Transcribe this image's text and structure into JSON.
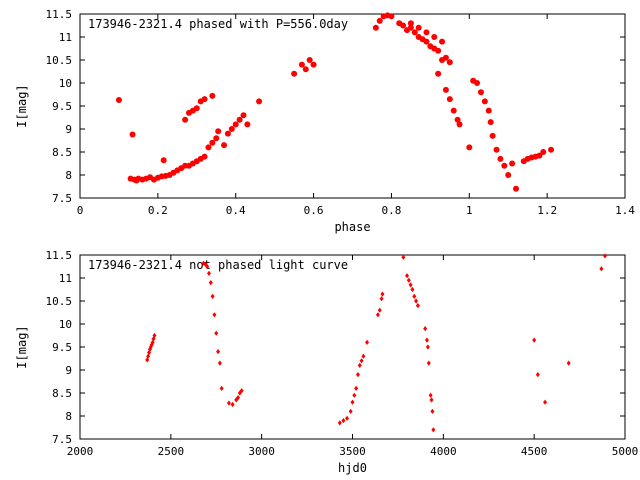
{
  "chart_data": [
    {
      "type": "scatter",
      "title": "173946-2321.4 phased with P=556.0day",
      "xlabel": "phase",
      "ylabel": "I[mag]",
      "xlim": [
        0,
        1.4
      ],
      "ylim": [
        11.5,
        7.5
      ],
      "y_inverted": true,
      "grid": false,
      "legend": "none",
      "marker": "filled-circle",
      "marker_color": "#ff0000",
      "xticks": [
        "0",
        "0.2",
        "0.4",
        "0.6",
        "0.8",
        "1",
        "1.2",
        "1.4"
      ],
      "yticks": [
        "7.5",
        "8",
        "8.5",
        "9",
        "9.5",
        "10",
        "10.5",
        "11",
        "11.5"
      ],
      "series": [
        {
          "points": [
            [
              0.1,
              9.63
            ],
            [
              0.13,
              7.92
            ],
            [
              0.135,
              8.88
            ],
            [
              0.14,
              7.9
            ],
            [
              0.145,
              7.88
            ],
            [
              0.15,
              7.92
            ],
            [
              0.16,
              7.9
            ],
            [
              0.17,
              7.92
            ],
            [
              0.18,
              7.95
            ],
            [
              0.19,
              7.9
            ],
            [
              0.2,
              7.94
            ],
            [
              0.21,
              7.97
            ],
            [
              0.215,
              8.32
            ],
            [
              0.22,
              7.98
            ],
            [
              0.23,
              8.0
            ],
            [
              0.24,
              8.05
            ],
            [
              0.25,
              8.1
            ],
            [
              0.26,
              8.15
            ],
            [
              0.27,
              8.2
            ],
            [
              0.28,
              8.2
            ],
            [
              0.29,
              8.25
            ],
            [
              0.3,
              8.3
            ],
            [
              0.31,
              8.35
            ],
            [
              0.32,
              8.4
            ],
            [
              0.33,
              8.6
            ],
            [
              0.34,
              8.7
            ],
            [
              0.35,
              8.8
            ],
            [
              0.355,
              8.95
            ],
            [
              0.37,
              8.65
            ],
            [
              0.38,
              8.9
            ],
            [
              0.39,
              9.0
            ],
            [
              0.4,
              9.1
            ],
            [
              0.41,
              9.2
            ],
            [
              0.42,
              9.3
            ],
            [
              0.43,
              9.1
            ],
            [
              0.46,
              9.6
            ],
            [
              0.27,
              9.2
            ],
            [
              0.28,
              9.35
            ],
            [
              0.29,
              9.4
            ],
            [
              0.3,
              9.45
            ],
            [
              0.31,
              9.6
            ],
            [
              0.32,
              9.65
            ],
            [
              0.34,
              9.72
            ],
            [
              0.55,
              10.2
            ],
            [
              0.57,
              10.4
            ],
            [
              0.58,
              10.3
            ],
            [
              0.59,
              10.5
            ],
            [
              0.6,
              10.4
            ],
            [
              0.76,
              11.2
            ],
            [
              0.77,
              11.35
            ],
            [
              0.78,
              11.45
            ],
            [
              0.79,
              11.47
            ],
            [
              0.8,
              11.45
            ],
            [
              0.82,
              11.3
            ],
            [
              0.83,
              11.25
            ],
            [
              0.84,
              11.15
            ],
            [
              0.85,
              11.2
            ],
            [
              0.86,
              11.1
            ],
            [
              0.87,
              11.0
            ],
            [
              0.88,
              10.95
            ],
            [
              0.89,
              10.9
            ],
            [
              0.9,
              10.8
            ],
            [
              0.91,
              10.75
            ],
            [
              0.92,
              10.7
            ],
            [
              0.93,
              10.5
            ],
            [
              0.94,
              10.55
            ],
            [
              0.95,
              10.45
            ],
            [
              0.85,
              11.3
            ],
            [
              0.87,
              11.2
            ],
            [
              0.89,
              11.1
            ],
            [
              0.91,
              11.0
            ],
            [
              0.93,
              10.9
            ],
            [
              0.92,
              10.2
            ],
            [
              0.94,
              9.85
            ],
            [
              0.95,
              9.65
            ],
            [
              0.96,
              9.4
            ],
            [
              0.97,
              9.2
            ],
            [
              0.975,
              9.1
            ],
            [
              1.0,
              8.6
            ],
            [
              1.01,
              10.05
            ],
            [
              1.02,
              10.0
            ],
            [
              1.03,
              9.8
            ],
            [
              1.04,
              9.6
            ],
            [
              1.05,
              9.4
            ],
            [
              1.055,
              9.15
            ],
            [
              1.06,
              8.85
            ],
            [
              1.07,
              8.55
            ],
            [
              1.08,
              8.35
            ],
            [
              1.09,
              8.2
            ],
            [
              1.1,
              8.0
            ],
            [
              1.11,
              8.25
            ],
            [
              1.12,
              7.7
            ],
            [
              1.14,
              8.3
            ],
            [
              1.15,
              8.35
            ],
            [
              1.16,
              8.38
            ],
            [
              1.17,
              8.4
            ],
            [
              1.18,
              8.42
            ],
            [
              1.19,
              8.5
            ],
            [
              1.21,
              8.55
            ]
          ]
        }
      ]
    },
    {
      "type": "scatter",
      "title": "173946-2321.4 not phased light curve",
      "xlabel": "hjd0",
      "ylabel": "I[mag]",
      "xlim": [
        2000,
        5000
      ],
      "ylim": [
        11.5,
        7.5
      ],
      "y_inverted": true,
      "grid": false,
      "legend": "none",
      "marker": "small-diamond",
      "marker_color": "#ff0000",
      "xticks": [
        "2000",
        "2500",
        "3000",
        "3500",
        "4000",
        "4500",
        "5000"
      ],
      "yticks": [
        "7.5",
        "8",
        "8.5",
        "9",
        "9.5",
        "10",
        "10.5",
        "11",
        "11.5"
      ],
      "series": [
        {
          "points": [
            [
              2370,
              9.22
            ],
            [
              2375,
              9.3
            ],
            [
              2380,
              9.38
            ],
            [
              2385,
              9.45
            ],
            [
              2390,
              9.5
            ],
            [
              2395,
              9.55
            ],
            [
              2400,
              9.6
            ],
            [
              2405,
              9.68
            ],
            [
              2410,
              9.75
            ],
            [
              2680,
              11.32
            ],
            [
              2690,
              11.3
            ],
            [
              2700,
              11.25
            ],
            [
              2710,
              11.1
            ],
            [
              2720,
              10.9
            ],
            [
              2730,
              10.6
            ],
            [
              2740,
              10.2
            ],
            [
              2750,
              9.8
            ],
            [
              2760,
              9.4
            ],
            [
              2770,
              9.15
            ],
            [
              2780,
              8.6
            ],
            [
              2820,
              8.28
            ],
            [
              2840,
              8.25
            ],
            [
              2860,
              8.35
            ],
            [
              2870,
              8.4
            ],
            [
              2880,
              8.5
            ],
            [
              2890,
              8.55
            ],
            [
              3430,
              7.85
            ],
            [
              3450,
              7.9
            ],
            [
              3470,
              7.95
            ],
            [
              3490,
              8.1
            ],
            [
              3500,
              8.3
            ],
            [
              3510,
              8.45
            ],
            [
              3520,
              8.6
            ],
            [
              3530,
              8.9
            ],
            [
              3540,
              9.1
            ],
            [
              3550,
              9.2
            ],
            [
              3560,
              9.3
            ],
            [
              3580,
              9.6
            ],
            [
              3640,
              10.2
            ],
            [
              3650,
              10.3
            ],
            [
              3660,
              10.55
            ],
            [
              3665,
              10.65
            ],
            [
              3780,
              11.45
            ],
            [
              3800,
              11.05
            ],
            [
              3810,
              10.95
            ],
            [
              3820,
              10.85
            ],
            [
              3830,
              10.75
            ],
            [
              3840,
              10.6
            ],
            [
              3850,
              10.5
            ],
            [
              3860,
              10.4
            ],
            [
              3900,
              9.9
            ],
            [
              3910,
              9.65
            ],
            [
              3915,
              9.5
            ],
            [
              3920,
              9.15
            ],
            [
              3930,
              8.45
            ],
            [
              3935,
              8.35
            ],
            [
              3940,
              8.1
            ],
            [
              3945,
              7.7
            ],
            [
              4500,
              9.65
            ],
            [
              4520,
              8.9
            ],
            [
              4560,
              8.3
            ],
            [
              4690,
              9.15
            ],
            [
              4870,
              11.2
            ],
            [
              4890,
              11.48
            ]
          ]
        }
      ]
    }
  ]
}
